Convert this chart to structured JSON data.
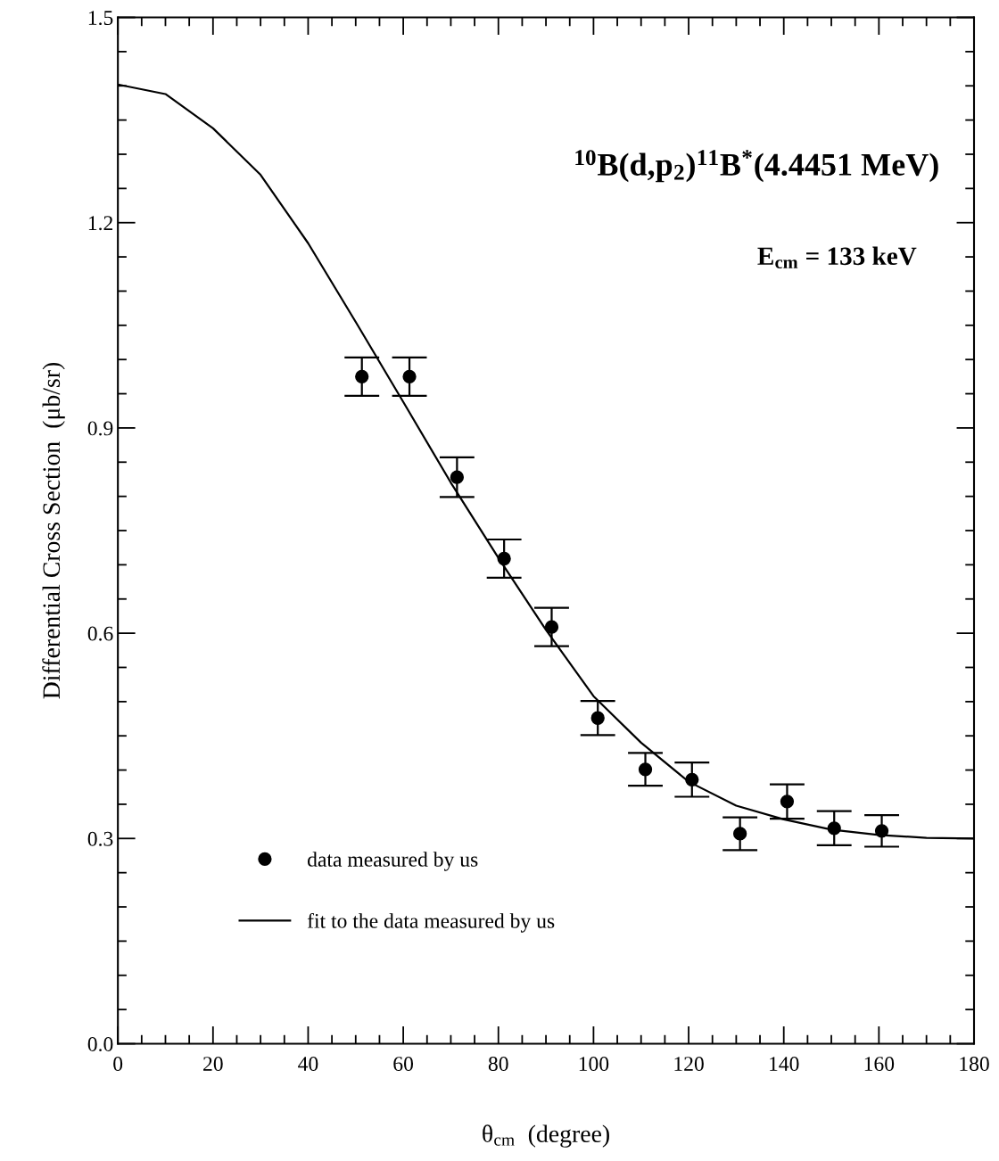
{
  "chart_data": {
    "type": "scatter",
    "xlabel": "θ$_{cm}$  (degree)",
    "ylabel": "Differential Cross Section  (μb/sr)",
    "annotations": [
      "$^{10}$B(d,p$_{2}$)$^{11}$B$^{*}$(4.4451 MeV)",
      "E$_{cm}$ = 133 keV"
    ],
    "x": [
      51.3,
      61.3,
      71.3,
      81.2,
      91.2,
      100.9,
      110.9,
      120.7,
      130.8,
      140.7,
      150.6,
      160.6
    ],
    "series": [
      {
        "name": "data measured by us",
        "color": "#000000",
        "marker": "circle",
        "values": [
          0.975,
          0.975,
          0.828,
          0.709,
          0.609,
          0.476,
          0.401,
          0.386,
          0.307,
          0.354,
          0.315,
          0.311
        ],
        "errors": [
          0.028,
          0.028,
          0.029,
          0.028,
          0.028,
          0.025,
          0.024,
          0.025,
          0.024,
          0.025,
          0.025,
          0.023
        ]
      },
      {
        "name": "fit to the data measured by us",
        "type": "line",
        "color": "#000000",
        "line_style": "solid",
        "marker": "none",
        "x": [
          0,
          10,
          20,
          30,
          40,
          50,
          60,
          70,
          80,
          90,
          100,
          110,
          120,
          130,
          140,
          150,
          160,
          170,
          180
        ],
        "values": [
          1.402,
          1.388,
          1.338,
          1.27,
          1.17,
          1.055,
          0.938,
          0.82,
          0.71,
          0.605,
          0.508,
          0.44,
          0.383,
          0.348,
          0.328,
          0.313,
          0.305,
          0.301,
          0.3
        ]
      }
    ],
    "xlim": [
      0,
      180
    ],
    "ylim": [
      0,
      1.5
    ],
    "xticks": [
      0,
      {
        "value": 5,
        "label": null
      },
      {
        "value": 10,
        "label": null
      },
      {
        "value": 15,
        "label": null
      },
      20,
      {
        "value": 25,
        "label": null
      },
      {
        "value": 30,
        "label": null
      },
      {
        "value": 35,
        "label": null
      },
      40,
      {
        "value": 45,
        "label": null
      },
      {
        "value": 50,
        "label": null
      },
      {
        "value": 55,
        "label": null
      },
      60,
      {
        "value": 65,
        "label": null
      },
      {
        "value": 70,
        "label": null
      },
      {
        "value": 75,
        "label": null
      },
      80,
      {
        "value": 85,
        "label": null
      },
      {
        "value": 90,
        "label": null
      },
      {
        "value": 95,
        "label": null
      },
      100,
      {
        "value": 105,
        "label": null
      },
      {
        "value": 110,
        "label": null
      },
      {
        "value": 115,
        "label": null
      },
      120,
      {
        "value": 125,
        "label": null
      },
      {
        "value": 130,
        "label": null
      },
      {
        "value": 135,
        "label": null
      },
      140,
      {
        "value": 145,
        "label": null
      },
      {
        "value": 150,
        "label": null
      },
      {
        "value": 155,
        "label": null
      },
      160,
      {
        "value": 165,
        "label": null
      },
      {
        "value": 170,
        "label": null
      },
      {
        "value": 175,
        "label": null
      },
      180
    ],
    "yticks": [
      {
        "value": 0,
        "label": "0.0"
      },
      {
        "value": 0.05,
        "label": null
      },
      {
        "value": 0.1,
        "label": null
      },
      {
        "value": 0.15,
        "label": null
      },
      {
        "value": 0.2,
        "label": null
      },
      {
        "value": 0.25,
        "label": null
      },
      0.3,
      {
        "value": 0.35,
        "label": null
      },
      {
        "value": 0.4,
        "label": null
      },
      {
        "value": 0.45,
        "label": null
      },
      {
        "value": 0.5,
        "label": null
      },
      {
        "value": 0.55,
        "label": null
      },
      0.6,
      {
        "value": 0.65,
        "label": null
      },
      {
        "value": 0.7,
        "label": null
      },
      {
        "value": 0.75,
        "label": null
      },
      {
        "value": 0.8,
        "label": null
      },
      {
        "value": 0.85,
        "label": null
      },
      0.9,
      {
        "value": 0.95,
        "label": null
      },
      {
        "value": 1.0,
        "label": null
      },
      {
        "value": 1.05,
        "label": null
      },
      {
        "value": 1.1,
        "label": null
      },
      {
        "value": 1.15,
        "label": null
      },
      1.2,
      {
        "value": 1.25,
        "label": null
      },
      {
        "value": 1.3,
        "label": null
      },
      {
        "value": 1.35,
        "label": null
      },
      {
        "value": 1.4,
        "label": null
      },
      {
        "value": 1.45,
        "label": null
      },
      1.5
    ],
    "grid": false,
    "legend": "bottom left"
  }
}
